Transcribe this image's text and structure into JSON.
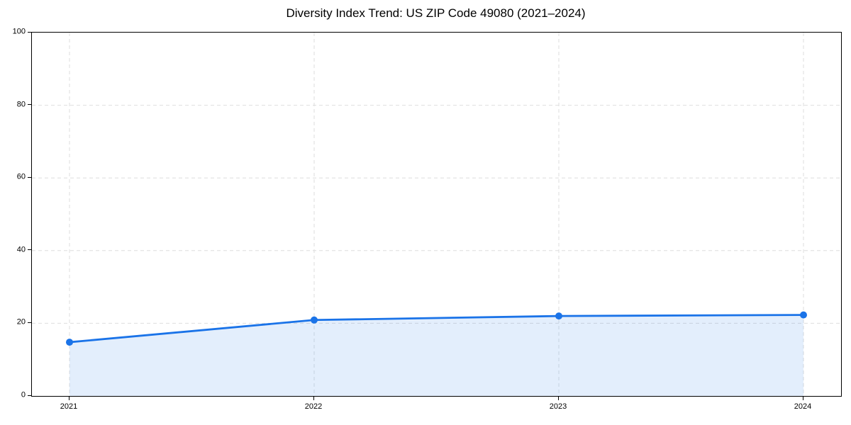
{
  "title": "Diversity Index Trend: US ZIP Code 49080 (2021–2024)",
  "chart_data": {
    "type": "area",
    "title": "Diversity Index Trend: US ZIP Code 49080 (2021–2024)",
    "categories": [
      "2021",
      "2022",
      "2023",
      "2024"
    ],
    "series": [
      {
        "name": "Diversity Index",
        "values": [
          14.8,
          20.9,
          22.0,
          22.3
        ]
      }
    ],
    "xlabel": "",
    "ylabel": "",
    "ylim": [
      0,
      100
    ],
    "yticks": [
      0,
      20,
      40,
      60,
      80,
      100
    ],
    "grid": "dashed, horizontal and vertical at ticks",
    "legend": "none",
    "marker": "circle",
    "colors": {
      "line": "#1a73e8",
      "marker": "#1a73e8",
      "fill": "rgba(26,115,232,0.12)",
      "gridline": "#dedede",
      "spine": "#000000",
      "text": "#000000",
      "background": "#ffffff"
    }
  }
}
